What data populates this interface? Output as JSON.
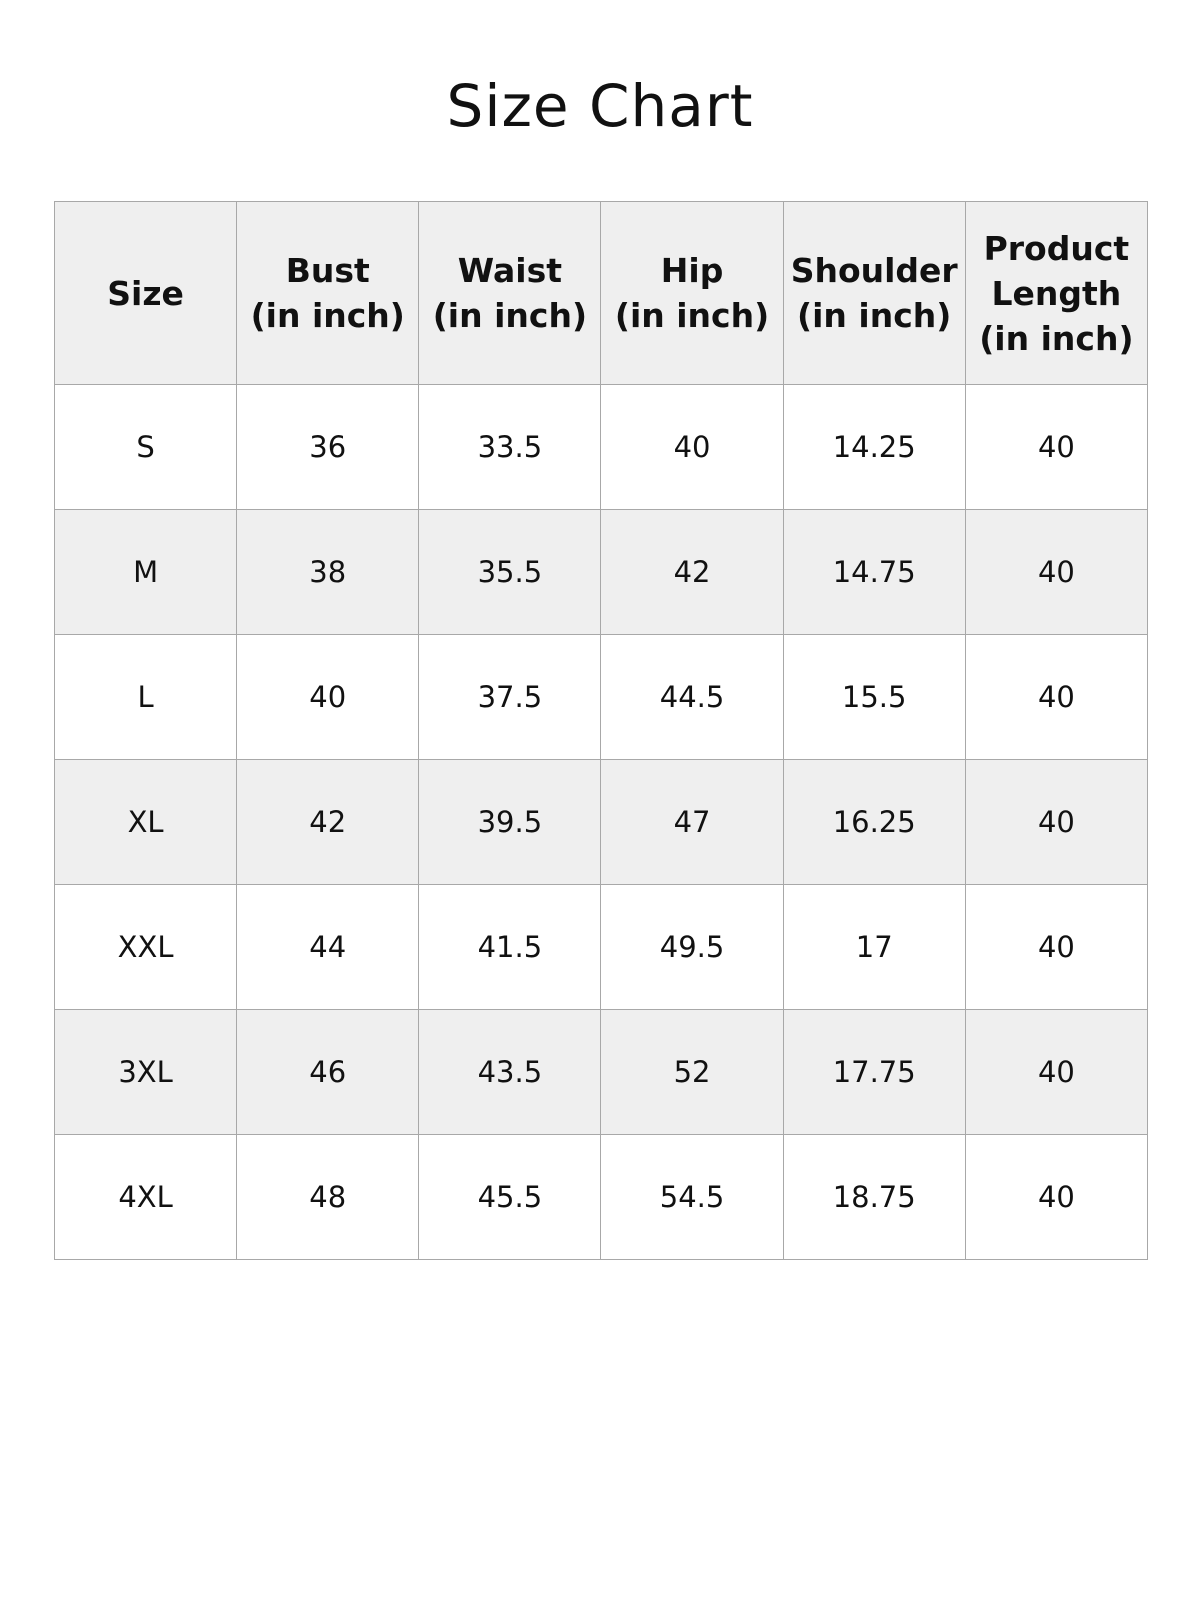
{
  "title": "Size Chart",
  "headers": [
    "Size",
    "Bust\n(in inch)",
    "Waist\n(in inch)",
    "Hip\n(in inch)",
    "Shoulder\n(in inch)",
    "Product\nLength\n(in inch)"
  ],
  "rows": [
    [
      "S",
      "36",
      "33.5",
      "40",
      "14.25",
      "40"
    ],
    [
      "M",
      "38",
      "35.5",
      "42",
      "14.75",
      "40"
    ],
    [
      "L",
      "40",
      "37.5",
      "44.5",
      "15.5",
      "40"
    ],
    [
      "XL",
      "42",
      "39.5",
      "47",
      "16.25",
      "40"
    ],
    [
      "XXL",
      "44",
      "41.5",
      "49.5",
      "17",
      "40"
    ],
    [
      "3XL",
      "46",
      "43.5",
      "52",
      "17.75",
      "40"
    ],
    [
      "4XL",
      "48",
      "45.5",
      "54.5",
      "18.75",
      "40"
    ]
  ],
  "colors": {
    "header_bg": "#efefef",
    "alt_row_bg": "#efefef",
    "border": "#a8a8a8"
  }
}
